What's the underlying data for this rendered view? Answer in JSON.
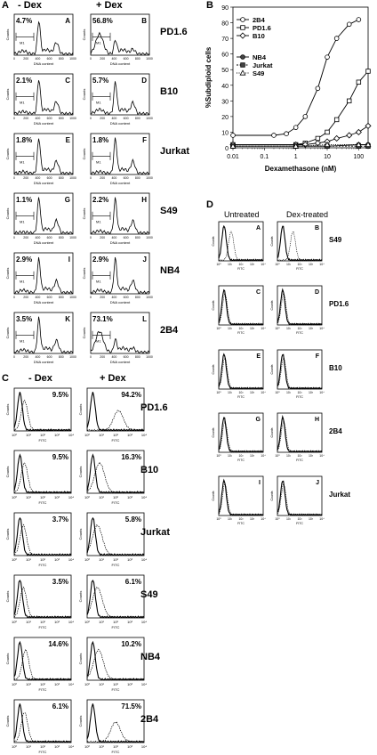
{
  "panelA": {
    "label": "A",
    "headers": {
      "left": "- Dex",
      "right": "+ Dex"
    },
    "xlabel": "DNA content",
    "ylabel": "Counts",
    "ticks": [
      "0",
      "200",
      "400",
      "600",
      "800",
      "1000"
    ],
    "marker": "M1",
    "rows": [
      {
        "cell": "PD1.6",
        "left": {
          "pct": "4.7%",
          "letter": "A"
        },
        "right": {
          "pct": "56.8%",
          "letter": "B"
        }
      },
      {
        "cell": "B10",
        "left": {
          "pct": "2.1%",
          "letter": "C"
        },
        "right": {
          "pct": "5.7%",
          "letter": "D"
        }
      },
      {
        "cell": "Jurkat",
        "left": {
          "pct": "1.8%",
          "letter": "E"
        },
        "right": {
          "pct": "1.8%",
          "letter": "F"
        }
      },
      {
        "cell": "S49",
        "left": {
          "pct": "1.1%",
          "letter": "G"
        },
        "right": {
          "pct": "2.2%",
          "letter": "H"
        }
      },
      {
        "cell": "NB4",
        "left": {
          "pct": "2.9%",
          "letter": "I"
        },
        "right": {
          "pct": "2.9%",
          "letter": "J"
        }
      },
      {
        "cell": "2B4",
        "left": {
          "pct": "3.5%",
          "letter": "K"
        },
        "right": {
          "pct": "73.1%",
          "letter": "L"
        }
      }
    ]
  },
  "panelC": {
    "label": "C",
    "headers": {
      "left": "- Dex",
      "right": "+ Dex"
    },
    "xlabel": "FITC",
    "ylabel": "Counts",
    "rows": [
      {
        "cell": "PD1.6",
        "left": "9.5%",
        "right": "94.2%"
      },
      {
        "cell": "B10",
        "left": "9.5%",
        "right": "16.3%"
      },
      {
        "cell": "Jurkat",
        "left": "3.7%",
        "right": "5.8%"
      },
      {
        "cell": "S49",
        "left": "3.5%",
        "right": "6.1%"
      },
      {
        "cell": "NB4",
        "left": "14.6%",
        "right": "10.2%"
      },
      {
        "cell": "2B4",
        "left": "6.1%",
        "right": "71.5%"
      }
    ]
  },
  "panelD": {
    "label": "D",
    "headers": {
      "left": "Untreated",
      "right": "Dex-treated"
    },
    "xlabel": "FITC",
    "ylabel": "Counts",
    "rows": [
      {
        "cell": "S49",
        "left": "A",
        "right": "B"
      },
      {
        "cell": "PD1.6",
        "left": "C",
        "right": "D"
      },
      {
        "cell": "B10",
        "left": "E",
        "right": "F"
      },
      {
        "cell": "2B4",
        "left": "G",
        "right": "H"
      },
      {
        "cell": "Jurkat",
        "left": "I",
        "right": "J"
      }
    ]
  },
  "chart_data": {
    "type": "line",
    "panel_label": "B",
    "title": "",
    "xlabel": "Dexamethasone (nM)",
    "ylabel": "%Subdiploid cells",
    "xscale": "log",
    "xlim": [
      0.01,
      200
    ],
    "ylim": [
      0,
      90
    ],
    "xticks": [
      "0.01",
      "0.1",
      "1",
      "10",
      "100"
    ],
    "yticks": [
      "0",
      "10",
      "20",
      "30",
      "40",
      "50",
      "60",
      "70",
      "80",
      "90"
    ],
    "legend_position": "top-left",
    "series": [
      {
        "name": "2B4",
        "marker": "circle-open",
        "x": [
          0.01,
          0.2,
          0.5,
          1,
          2,
          5,
          10,
          20,
          50,
          100
        ],
        "values": [
          8,
          8,
          9,
          13,
          20,
          38,
          58,
          70,
          79,
          82
        ]
      },
      {
        "name": "PD1.6",
        "marker": "square-open",
        "x": [
          0.01,
          1,
          2,
          5,
          10,
          20,
          50,
          100,
          200
        ],
        "values": [
          2,
          2,
          3,
          6,
          10,
          18,
          30,
          42,
          49
        ]
      },
      {
        "name": "B10",
        "marker": "diamond-open",
        "x": [
          0.01,
          1,
          2,
          5,
          10,
          20,
          50,
          100,
          200
        ],
        "values": [
          2,
          2,
          2,
          3,
          4,
          6,
          8,
          10,
          14
        ]
      },
      {
        "name": "NB4",
        "marker": "circle-filled",
        "x": [
          0.01,
          1,
          10,
          100,
          200
        ],
        "values": [
          1,
          1,
          1,
          2,
          2
        ]
      },
      {
        "name": "Jurkat",
        "marker": "square-filled",
        "x": [
          0.01,
          1,
          10,
          100,
          200
        ],
        "values": [
          1,
          1,
          1,
          1,
          1
        ]
      },
      {
        "name": "S49",
        "marker": "triangle-open",
        "x": [
          0.01,
          1,
          10,
          100,
          200
        ],
        "values": [
          1,
          1,
          2,
          2,
          2
        ]
      }
    ]
  }
}
